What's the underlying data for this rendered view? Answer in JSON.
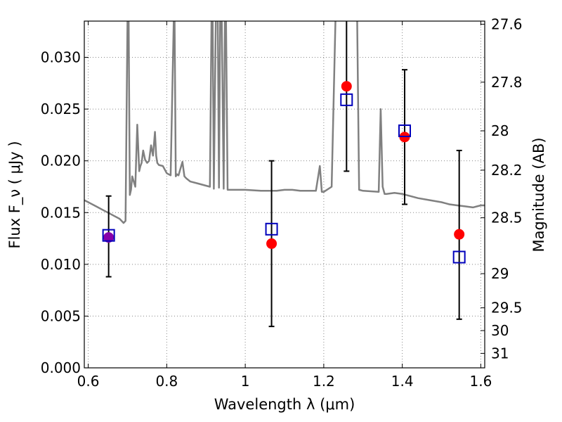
{
  "chart_data": {
    "type": "scatter",
    "title": "",
    "xlabel": "Wavelength  λ (μm)",
    "ylabel": "Flux  F_ν  ( μJy )",
    "ylabel_right": "Magnitude (AB)",
    "xlim": [
      0.59,
      1.61
    ],
    "ylim": [
      0.0,
      0.0335
    ],
    "grid": true,
    "x_ticks": [
      0.6,
      0.8,
      1.0,
      1.2,
      1.4,
      1.6
    ],
    "x_tick_labels": [
      "0.6",
      "0.8",
      "1",
      "1.2",
      "1.4",
      "1.6"
    ],
    "y_ticks": [
      0.0,
      0.005,
      0.01,
      0.015,
      0.02,
      0.025,
      0.03
    ],
    "y_tick_labels": [
      "0.000",
      "0.005",
      "0.010",
      "0.015",
      "0.020",
      "0.025",
      "0.030"
    ],
    "right_ticks": [
      {
        "label": "27.6",
        "flux": 0.0332
      },
      {
        "label": "27.8",
        "flux": 0.0276
      },
      {
        "label": "28",
        "flux": 0.0229
      },
      {
        "label": "28.2",
        "flux": 0.0191
      },
      {
        "label": "28.5",
        "flux": 0.0145
      },
      {
        "label": "29",
        "flux": 0.0091
      },
      {
        "label": "29.5",
        "flux": 0.0058
      },
      {
        "label": "30",
        "flux": 0.0036
      },
      {
        "label": "31",
        "flux": 0.0014
      }
    ],
    "colors": {
      "model": "#808080",
      "observed": "#ff0000",
      "model_photometry": "#0000bb",
      "overlap": "#8800aa",
      "errorbar": "#000000",
      "grid": "#888888"
    },
    "series": [
      {
        "kind": "spectrum",
        "x": [
          0.59,
          0.6,
          0.62,
          0.64,
          0.66,
          0.68,
          0.69,
          0.695,
          0.7,
          0.703,
          0.706,
          0.709,
          0.712,
          0.72,
          0.725,
          0.73,
          0.733,
          0.736,
          0.74,
          0.745,
          0.75,
          0.755,
          0.76,
          0.765,
          0.77,
          0.773,
          0.776,
          0.78,
          0.79,
          0.8,
          0.81,
          0.818,
          0.82,
          0.823,
          0.826,
          0.83,
          0.84,
          0.845,
          0.85,
          0.86,
          0.88,
          0.9,
          0.91,
          0.914,
          0.917,
          0.92,
          0.925,
          0.93,
          0.933,
          0.936,
          0.94,
          0.945,
          0.948,
          0.951,
          0.955,
          0.96,
          1.0,
          1.04,
          1.08,
          1.1,
          1.12,
          1.14,
          1.16,
          1.18,
          1.19,
          1.195,
          1.2,
          1.22,
          1.23,
          1.235,
          1.24,
          1.25,
          1.26,
          1.27,
          1.28,
          1.285,
          1.29,
          1.3,
          1.34,
          1.345,
          1.35,
          1.355,
          1.36,
          1.38,
          1.4,
          1.42,
          1.44,
          1.47,
          1.5,
          1.52,
          1.54,
          1.56,
          1.58,
          1.6,
          1.61
        ],
        "y": [
          0.0162,
          0.016,
          0.0156,
          0.0152,
          0.0148,
          0.0144,
          0.014,
          0.0142,
          0.0338,
          0.0338,
          0.0167,
          0.0172,
          0.0185,
          0.0175,
          0.0235,
          0.019,
          0.0195,
          0.0198,
          0.021,
          0.0201,
          0.0198,
          0.02,
          0.0215,
          0.0205,
          0.0228,
          0.0205,
          0.0198,
          0.0196,
          0.0195,
          0.0188,
          0.0186,
          0.0338,
          0.0338,
          0.0185,
          0.0187,
          0.0186,
          0.0199,
          0.0185,
          0.0183,
          0.018,
          0.0178,
          0.0176,
          0.0175,
          0.0338,
          0.0338,
          0.0173,
          0.0338,
          0.0338,
          0.0174,
          0.0338,
          0.0338,
          0.0173,
          0.0338,
          0.0338,
          0.0172,
          0.0172,
          0.0172,
          0.0171,
          0.0171,
          0.0172,
          0.0172,
          0.0171,
          0.0171,
          0.0171,
          0.0195,
          0.017,
          0.017,
          0.0175,
          0.0338,
          0.0338,
          0.0338,
          0.0338,
          0.0338,
          0.0338,
          0.0338,
          0.0338,
          0.0172,
          0.0171,
          0.017,
          0.025,
          0.0175,
          0.0168,
          0.0168,
          0.0169,
          0.0168,
          0.0166,
          0.0164,
          0.0162,
          0.016,
          0.0158,
          0.0157,
          0.0156,
          0.0155,
          0.0157,
          0.0157
        ]
      },
      {
        "kind": "model_photometry",
        "marker": "open-square",
        "x": [
          0.652,
          1.067,
          1.258,
          1.406,
          1.545
        ],
        "y": [
          0.0128,
          0.0134,
          0.0259,
          0.0229,
          0.0107
        ]
      },
      {
        "kind": "observed",
        "marker": "filled-circle",
        "x": [
          0.652,
          1.067,
          1.258,
          1.406,
          1.545
        ],
        "y": [
          0.0126,
          0.012,
          0.0272,
          0.0223,
          0.0129
        ],
        "yerr_low": [
          0.0088,
          0.004,
          0.019,
          0.0158,
          0.0047
        ],
        "yerr_high": [
          0.0166,
          0.02,
          0.0338,
          0.0288,
          0.021
        ]
      }
    ]
  }
}
